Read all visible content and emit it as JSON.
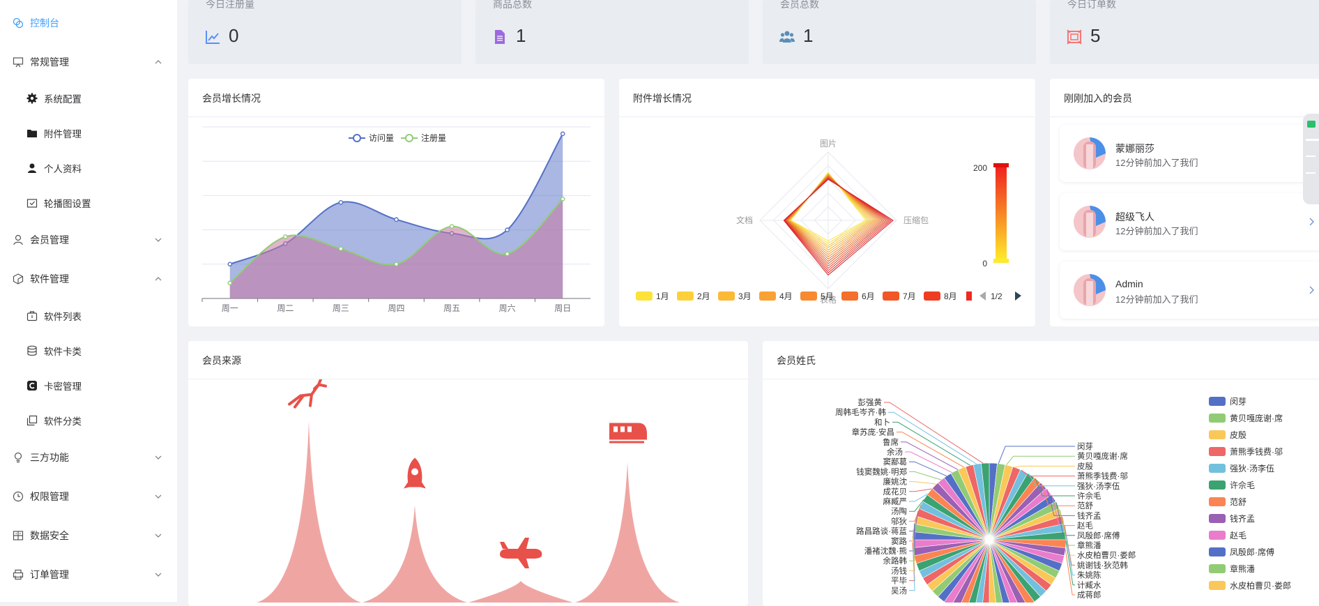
{
  "sidebar": {
    "items": [
      {
        "label": "控制台"
      },
      {
        "label": "常规管理"
      },
      {
        "label": "系统配置"
      },
      {
        "label": "附件管理"
      },
      {
        "label": "个人资料"
      },
      {
        "label": "轮播图设置"
      },
      {
        "label": "会员管理"
      },
      {
        "label": "软件管理"
      },
      {
        "label": "软件列表"
      },
      {
        "label": "软件卡类"
      },
      {
        "label": "卡密管理"
      },
      {
        "label": "软件分类"
      },
      {
        "label": "三方功能"
      },
      {
        "label": "权限管理"
      },
      {
        "label": "数据安全"
      },
      {
        "label": "订单管理"
      }
    ]
  },
  "stats": [
    {
      "caption": "今日注册量",
      "value": "0",
      "icon": "trend-icon",
      "color": "#5b8ff9"
    },
    {
      "caption": "商品总数",
      "value": "1",
      "icon": "document-icon",
      "color": "#9c6ade"
    },
    {
      "caption": "会员总数",
      "value": "1",
      "icon": "users-icon",
      "color": "#5a8fb8"
    },
    {
      "caption": "今日订单数",
      "value": "5",
      "icon": "order-icon",
      "color": "#f56c6c"
    }
  ],
  "cards": {
    "member_growth": "会员增长情况",
    "attachment_growth": "附件增长情况",
    "new_members": "刚刚加入的会员",
    "member_source": "会员来源",
    "member_surname": "会员姓氏"
  },
  "members": [
    {
      "name": "蒙娜丽莎",
      "time": "12分钟前加入了我们"
    },
    {
      "name": "超级飞人",
      "time": "12分钟前加入了我们"
    },
    {
      "name": "Admin",
      "time": "12分钟前加入了我们"
    }
  ],
  "colors": {
    "accent": "#409eff",
    "visit": "#5470c6",
    "register": "#91cc75",
    "source": "#e8504a"
  },
  "chart_data": [
    {
      "type": "area",
      "title": "会员增长情况",
      "categories": [
        "周一",
        "周二",
        "周三",
        "周四",
        "周五",
        "周六",
        "周日"
      ],
      "series": [
        {
          "name": "访问量",
          "values": [
            20,
            32,
            56,
            46,
            38,
            40,
            96
          ]
        },
        {
          "name": "注册量",
          "values": [
            9,
            36,
            29,
            20,
            42,
            26,
            58
          ]
        }
      ],
      "ylim": [
        0,
        100
      ],
      "grid": true,
      "legend": "top-center"
    },
    {
      "type": "radar",
      "title": "附件增长情况",
      "indicators": [
        "图片",
        "压缩包",
        "表格",
        "文档"
      ],
      "series_labels": [
        "1月",
        "2月",
        "3月",
        "4月",
        "5月",
        "6月",
        "7月",
        "8月"
      ],
      "page_indicator": "1/2",
      "visual_map": {
        "min": "0",
        "max": "200"
      }
    },
    {
      "type": "pictorial-bar",
      "title": "会员来源",
      "values": [
        84,
        45,
        10,
        65
      ],
      "icons": [
        "deer-icon",
        "rocket-icon",
        "plane-icon",
        "train-icon"
      ]
    },
    {
      "type": "pie",
      "title": "会员姓氏",
      "legend": "right",
      "legend_entries": [
        {
          "name": "闵芽",
          "color": "#5470c6"
        },
        {
          "name": "黄贝嘎庞谢·席",
          "color": "#91cc75"
        },
        {
          "name": "皮殷",
          "color": "#fac858"
        },
        {
          "name": "萧熊季钱费·邬",
          "color": "#ee6666"
        },
        {
          "name": "强狄·汤李伍",
          "color": "#73c0de"
        },
        {
          "name": "许佘毛",
          "color": "#3ba272"
        },
        {
          "name": "范舒",
          "color": "#fc8452"
        },
        {
          "name": "钱齐孟",
          "color": "#9a60b4"
        },
        {
          "name": "赵毛",
          "color": "#ea7ccc"
        },
        {
          "name": "凤殷郎·席傅",
          "color": "#5470c6"
        },
        {
          "name": "章熊潘",
          "color": "#91cc75"
        },
        {
          "name": "水皮柏曹贝·娄郎",
          "color": "#fac858"
        }
      ],
      "labels_right": [
        "闵芽",
        "黄贝嘎庞谢·席",
        "皮殷",
        "萧熊季钱费·邬",
        "强狄·汤李伍",
        "许佘毛",
        "范舒",
        "钱齐孟",
        "赵毛",
        "凤殷郎·席傅",
        "章熊潘",
        "水皮柏曹贝·娄郎",
        "姚谢钱·狄范韩",
        "朱姚陈",
        "计臧水",
        "成蒋郎"
      ],
      "labels_left": [
        "彭强黄",
        "周韩毛岑齐·韩",
        "和卜",
        "章苏庞·安昌",
        "鲁席",
        "余汤",
        "窦鄙葛",
        "钱窦魏姚·明郑",
        "廉姚沈",
        "成花贝",
        "麻臧严",
        "汤陶",
        "邬狄",
        "路昌路谈·蒋蓝",
        "窦路",
        "潘褚沈魏·熊",
        "余路韩",
        "汤钱",
        "平毕",
        "吴汤"
      ]
    }
  ]
}
